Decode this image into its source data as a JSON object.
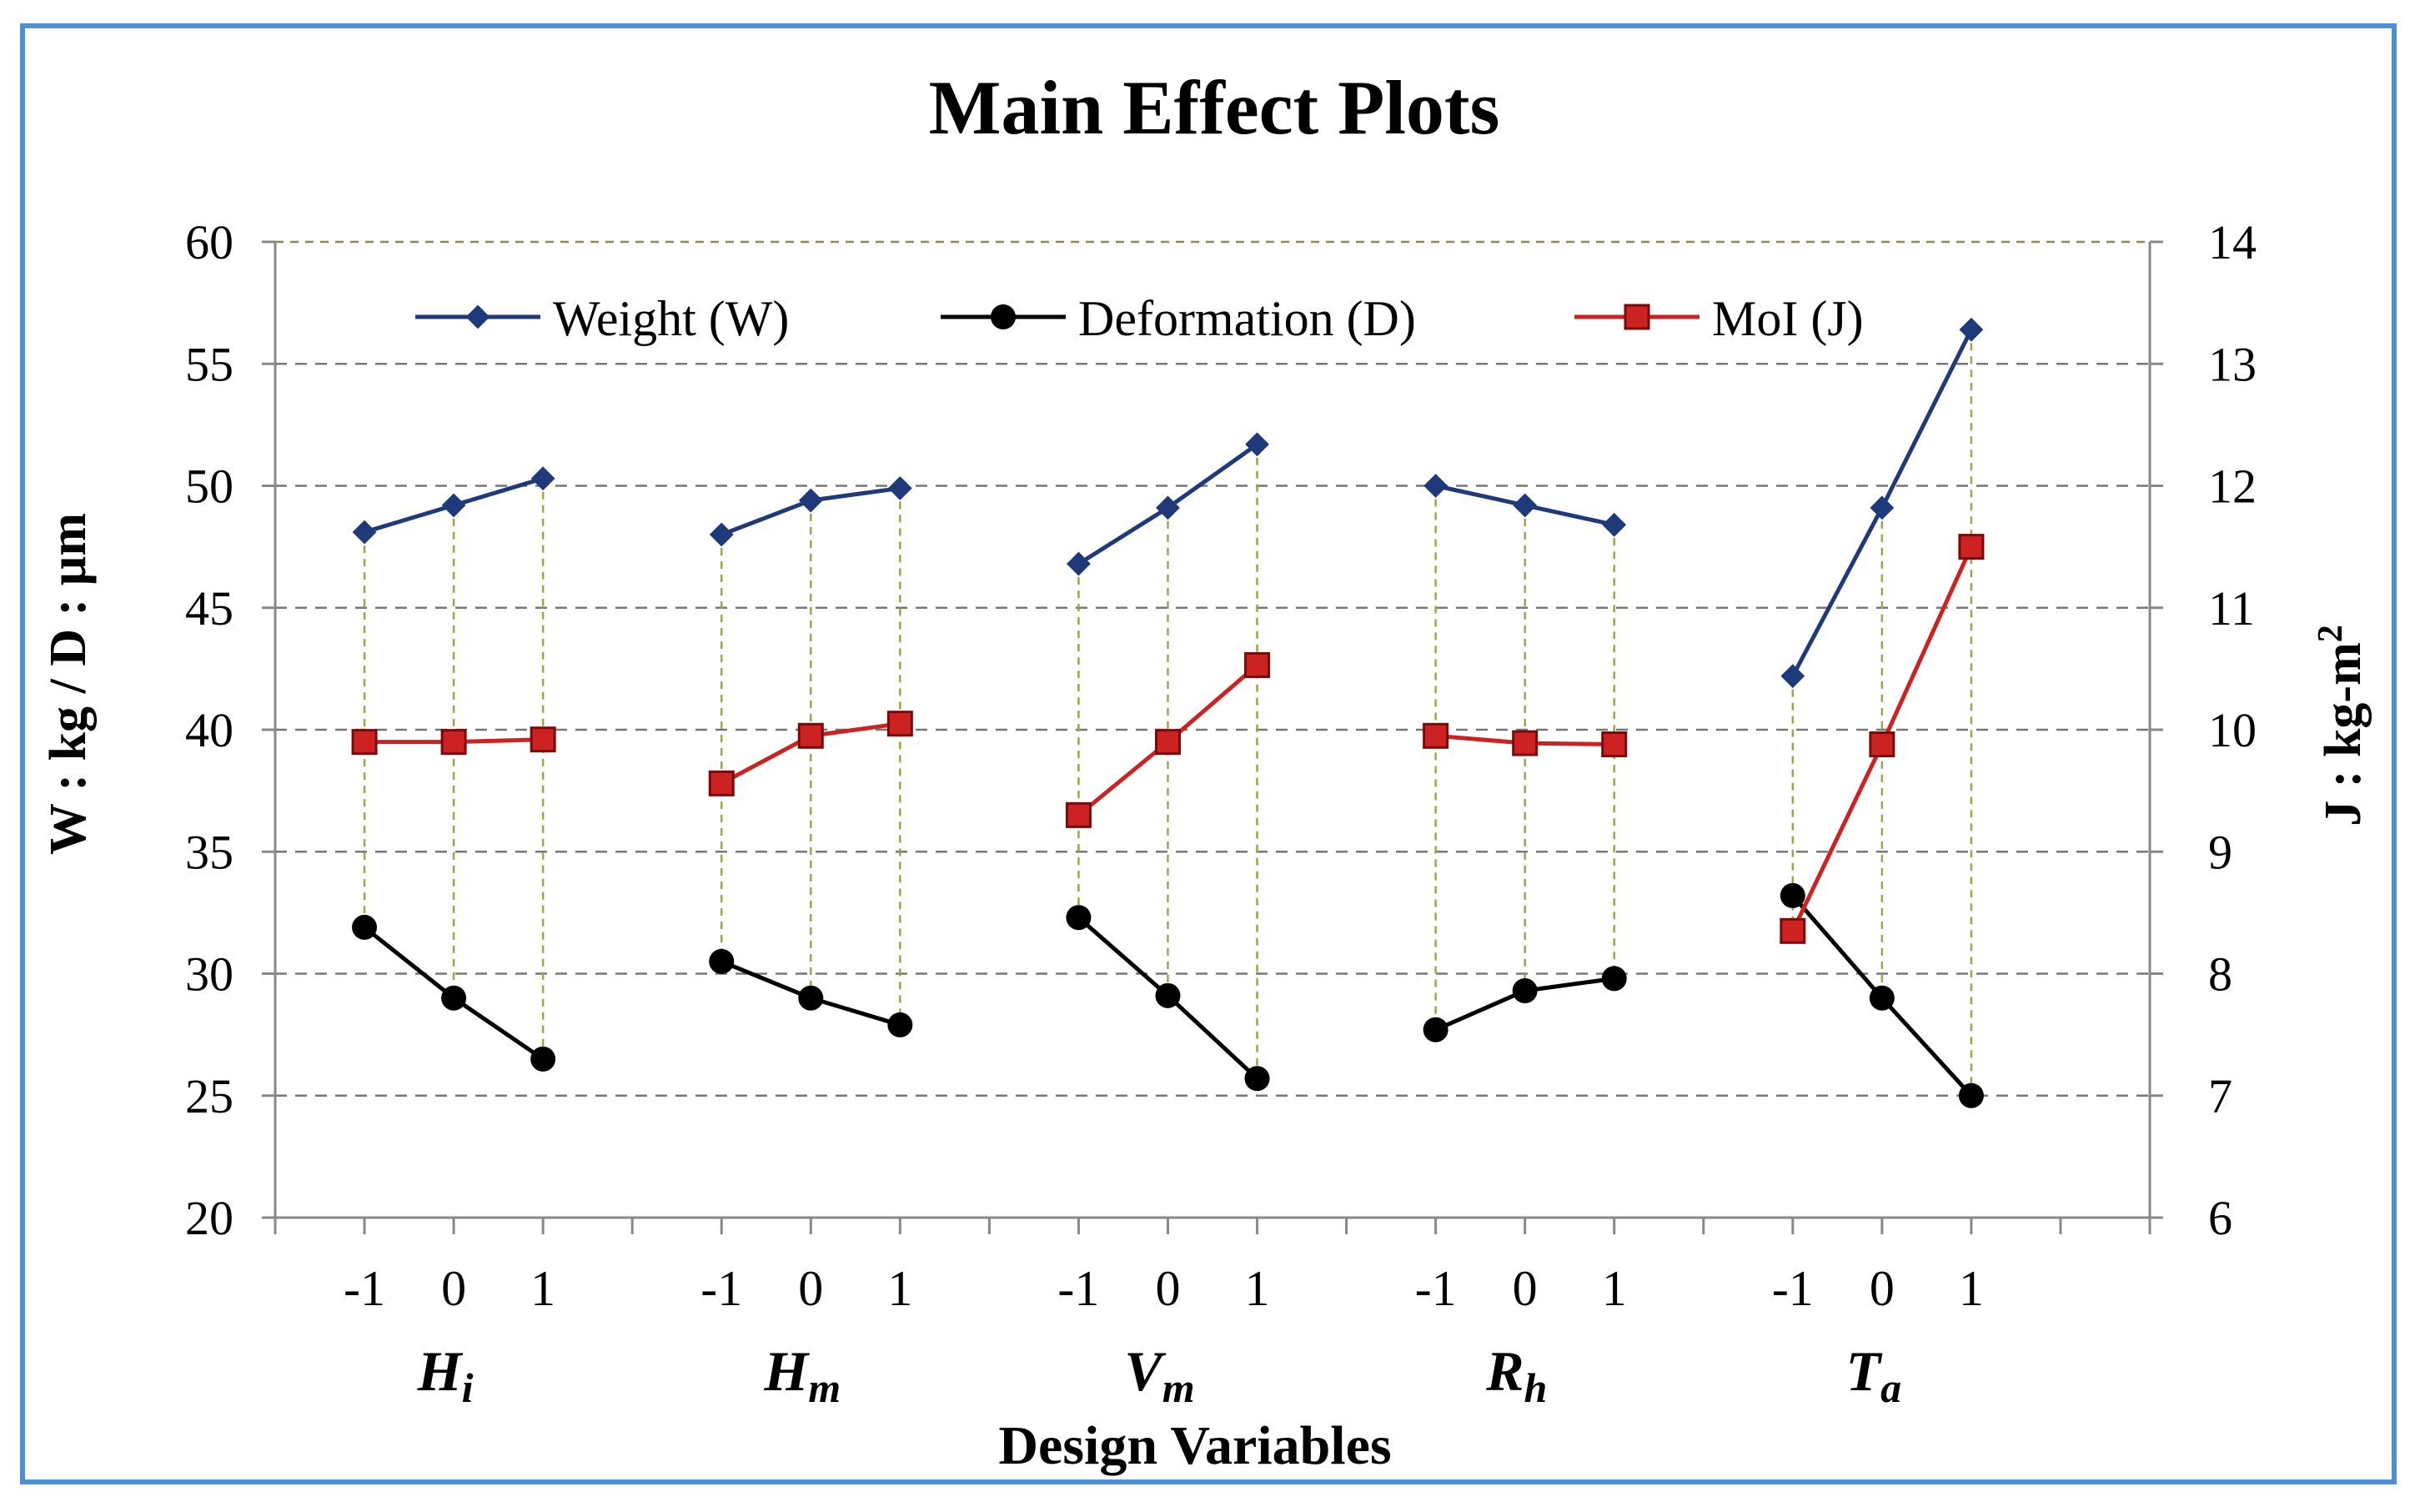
{
  "chart_data": {
    "type": "line",
    "title": "Main Effect Plots",
    "xlabel": "Design Variables",
    "ylabel_left": "W : kg / D : µm",
    "ylabel_right_base": "J : kg-m",
    "ylabel_right_sup": "2",
    "ylim_left": [
      20,
      60
    ],
    "ylim_right": [
      6,
      14
    ],
    "yticks_left": [
      "20",
      "25",
      "30",
      "35",
      "40",
      "45",
      "50",
      "55",
      "60"
    ],
    "yticks_right": [
      "6",
      "7",
      "8",
      "9",
      "10",
      "11",
      "12",
      "13",
      "14"
    ],
    "levels": [
      "-1",
      "0",
      "1"
    ],
    "groups": [
      {
        "base": "H",
        "sub": "i"
      },
      {
        "base": "H",
        "sub": "m"
      },
      {
        "base": "V",
        "sub": "m"
      },
      {
        "base": "R",
        "sub": "h"
      },
      {
        "base": "T",
        "sub": "a"
      }
    ],
    "series": [
      {
        "name": "Weight (W)",
        "axis": "left",
        "color": "#1f3a7a",
        "marker": "diamond",
        "values": [
          [
            48.1,
            49.2,
            50.3
          ],
          [
            48.0,
            49.4,
            49.9
          ],
          [
            46.8,
            49.1,
            51.7
          ],
          [
            50.0,
            49.2,
            48.4
          ],
          [
            42.2,
            49.1,
            56.4
          ]
        ]
      },
      {
        "name": "Deformation (D)",
        "axis": "left",
        "color": "#000000",
        "marker": "circle",
        "values": [
          [
            31.9,
            29.0,
            26.5
          ],
          [
            30.5,
            29.0,
            27.9
          ],
          [
            32.3,
            29.1,
            25.7
          ],
          [
            27.7,
            29.3,
            29.8
          ],
          [
            33.2,
            29.0,
            25.0
          ]
        ]
      },
      {
        "name": "MoI (J)",
        "axis": "right",
        "color": "#cc2222",
        "marker": "square",
        "values": [
          [
            9.9,
            9.9,
            9.92
          ],
          [
            9.56,
            9.95,
            10.05
          ],
          [
            9.3,
            9.9,
            10.53
          ],
          [
            9.95,
            9.89,
            9.88
          ],
          [
            8.35,
            9.88,
            11.5
          ]
        ]
      }
    ]
  }
}
